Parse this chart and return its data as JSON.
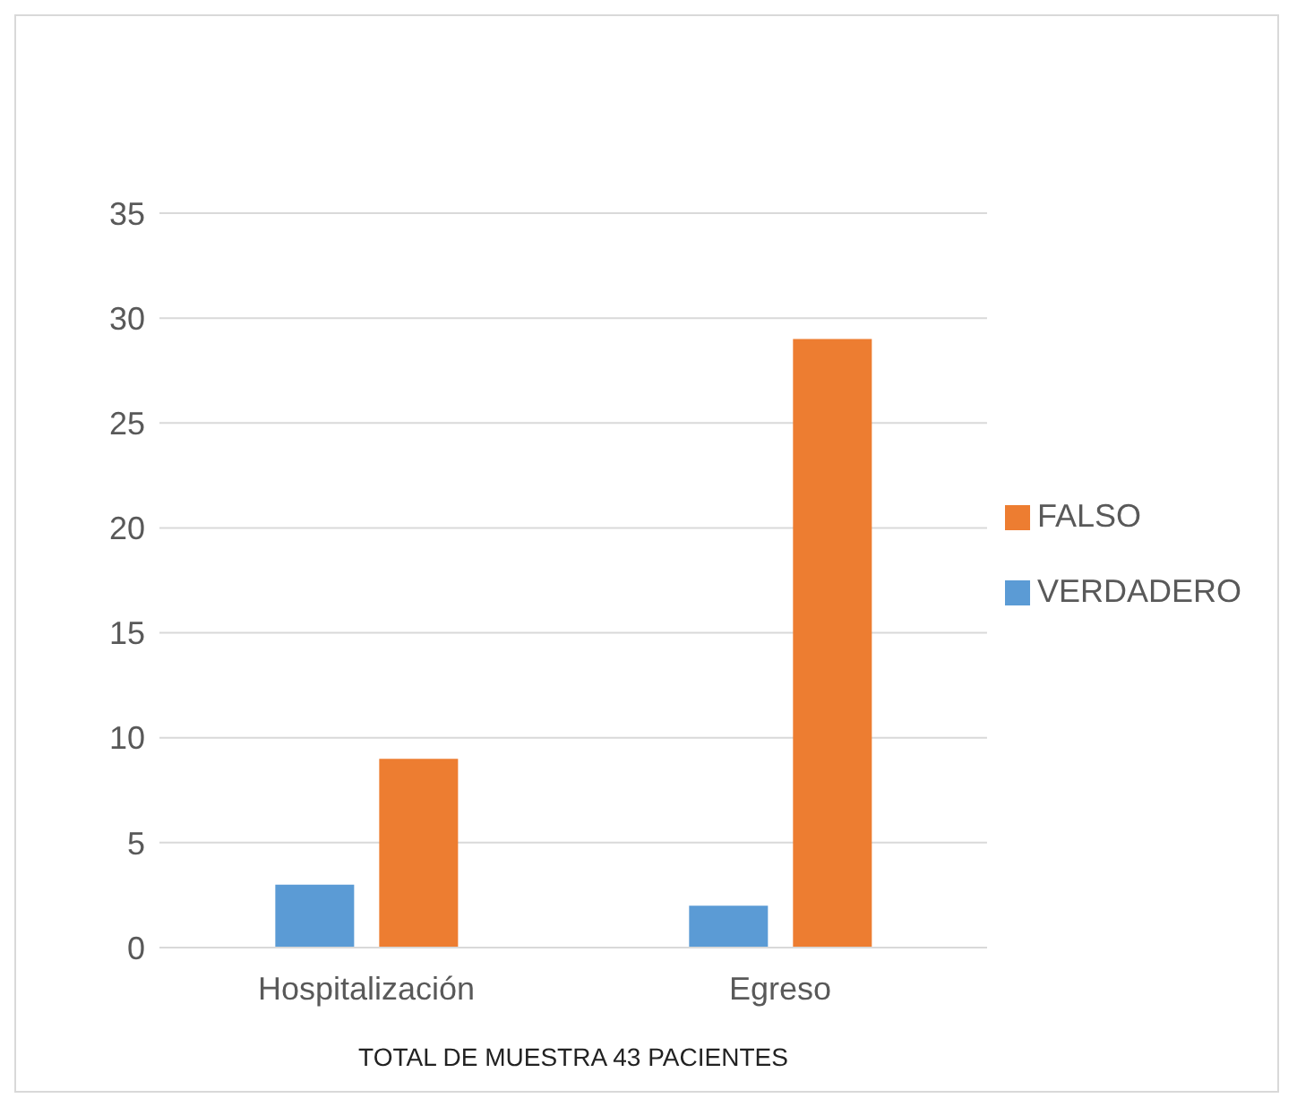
{
  "chart_data": {
    "type": "bar",
    "xlabel": "TOTAL DE MUESTRA 43 PACIENTES",
    "categories": [
      "Hospitalización",
      "Egreso"
    ],
    "series": [
      {
        "name": "VERDADERO",
        "color": "#5b9bd5",
        "values": [
          3,
          2
        ]
      },
      {
        "name": "FALSO",
        "color": "#ed7d31",
        "values": [
          9,
          29
        ]
      }
    ],
    "ylim": [
      0,
      35
    ],
    "yticks": [
      0,
      5,
      10,
      15,
      20,
      25,
      30,
      35
    ],
    "grid": "y",
    "legend": "right"
  }
}
